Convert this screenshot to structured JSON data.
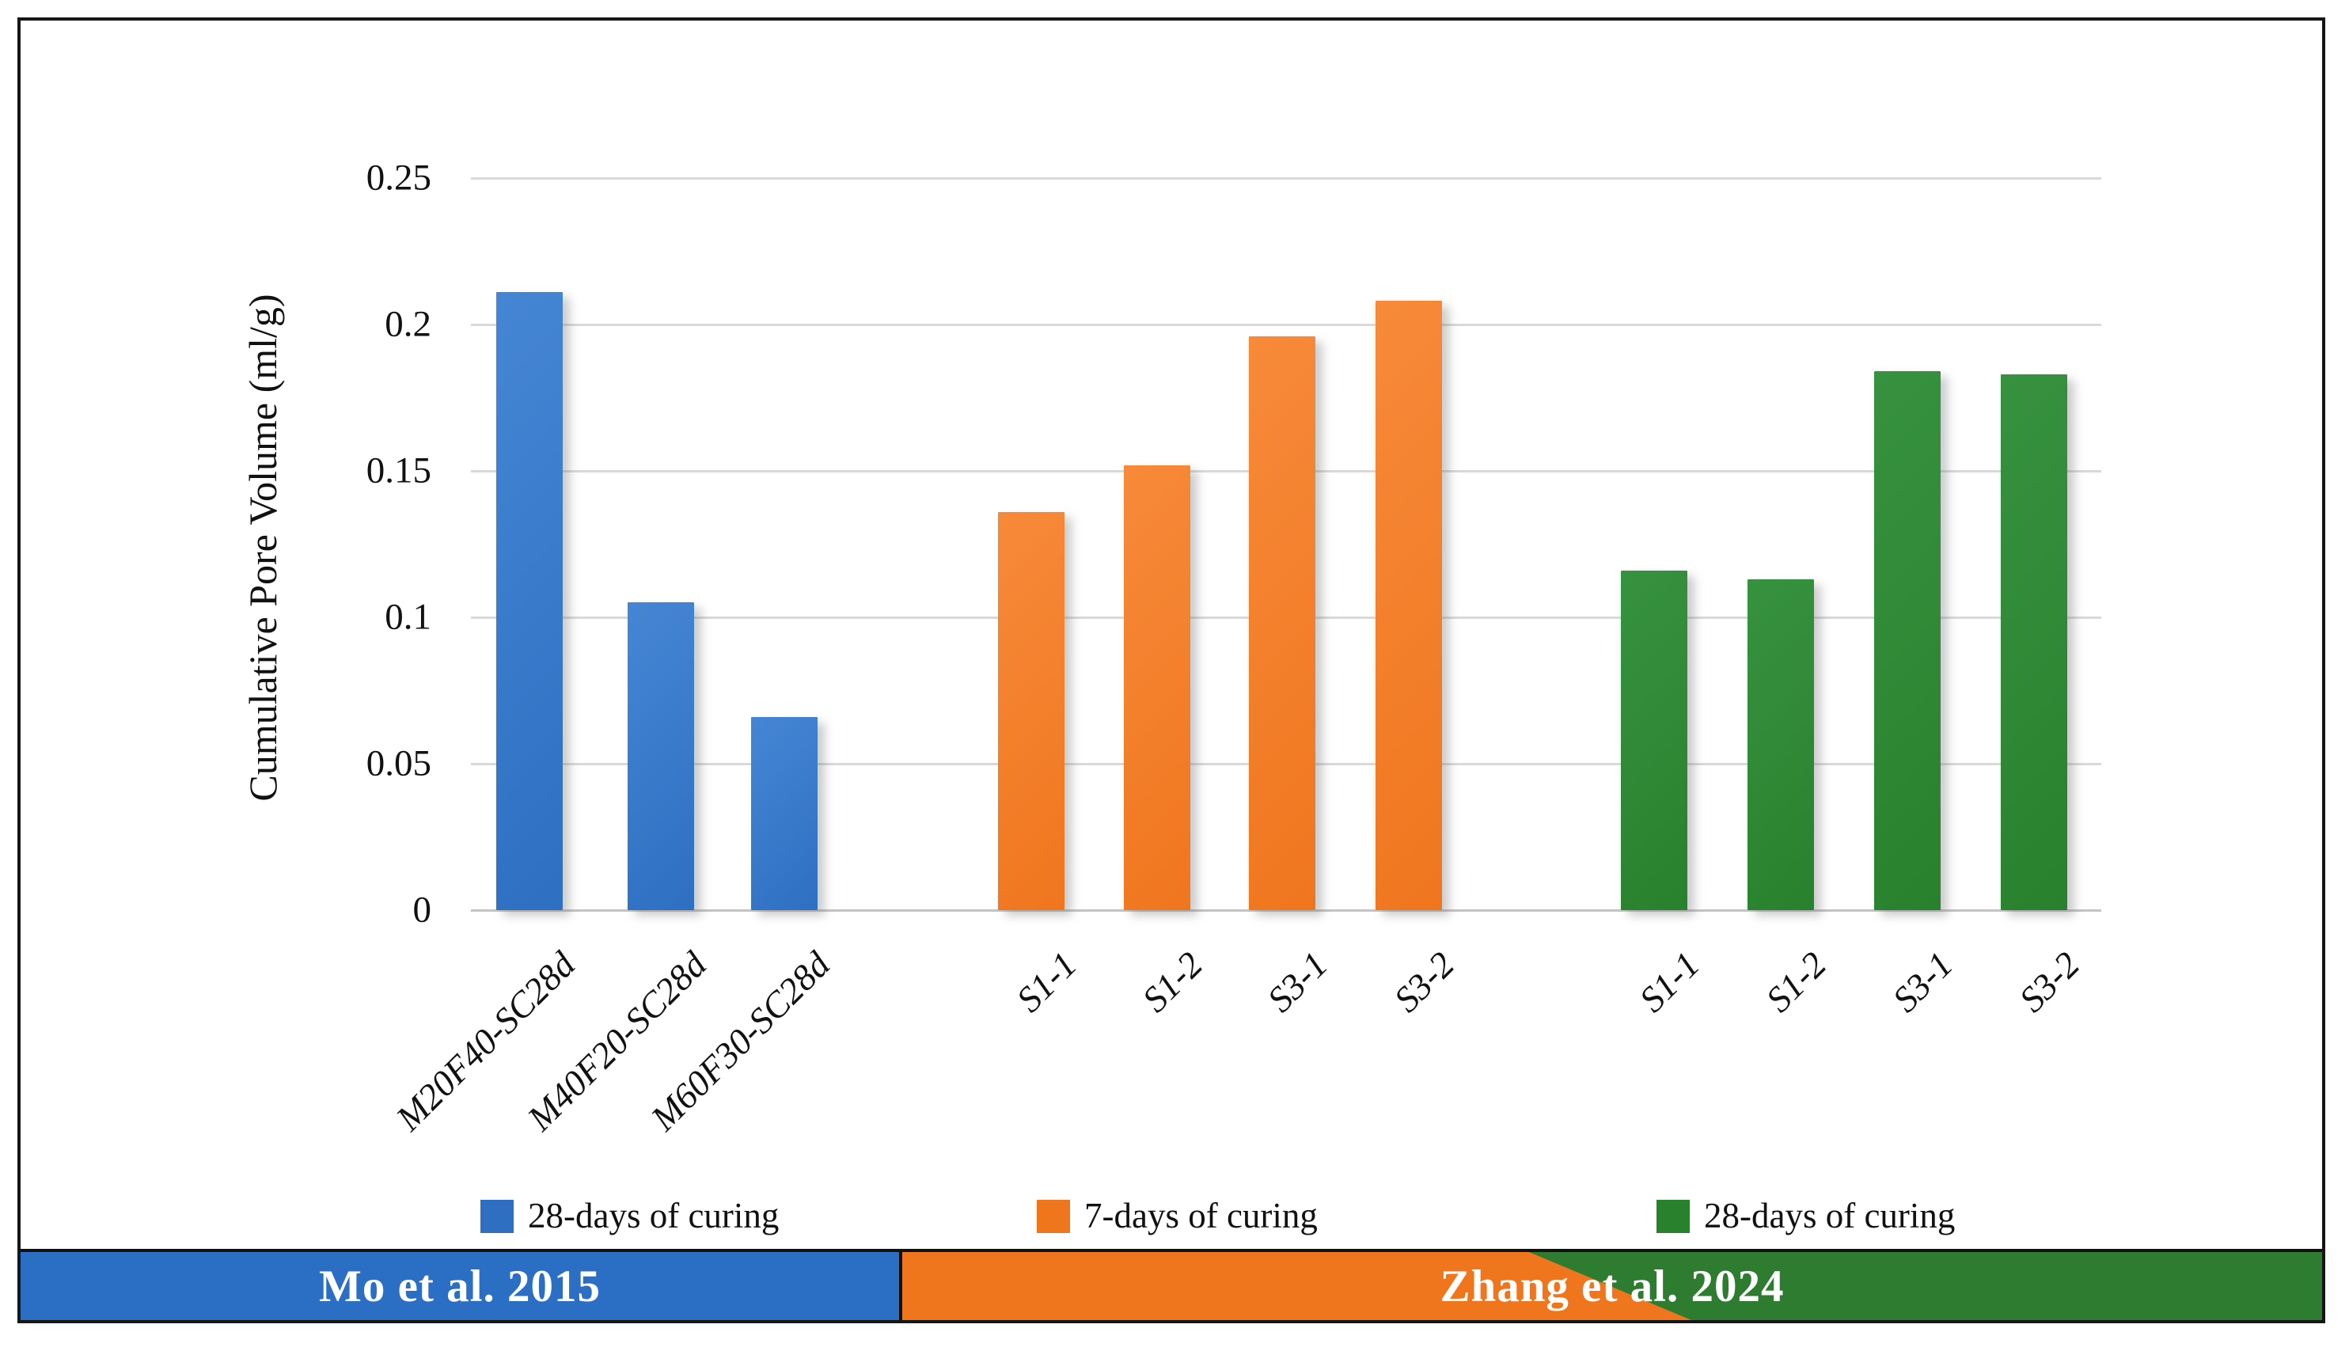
{
  "figure": {
    "background": "#ffffff",
    "frame_color": "#161616"
  },
  "chart_data": {
    "type": "bar",
    "title": "",
    "xlabel": "",
    "ylabel": "Cumulative Pore Volume (ml/g)",
    "ylim": [
      0,
      0.25
    ],
    "yticks": [
      0,
      0.05,
      0.1,
      0.15,
      0.2,
      0.25
    ],
    "ytick_labels": [
      "0",
      "0.05",
      "0.1",
      "0.15",
      "0.2",
      "0.25"
    ],
    "grid": true,
    "legend_position": "bottom",
    "groups": [
      {
        "legend": "28-days of curing",
        "color": "#2e6fc2",
        "categories": [
          "M20F40-SC28d",
          "M40F20-SC28d",
          "M60F30-SC28d"
        ],
        "values": [
          0.211,
          0.105,
          0.066
        ]
      },
      {
        "legend": "7-days of curing",
        "color": "#f0761e",
        "categories": [
          "S1-1",
          "S1-2",
          "S3-1",
          "S3-2"
        ],
        "values": [
          0.136,
          0.152,
          0.196,
          0.208
        ]
      },
      {
        "legend": "28-days of curing",
        "color": "#28812c",
        "categories": [
          "S1-1",
          "S1-2",
          "S3-1",
          "S3-2"
        ],
        "values": [
          0.116,
          0.113,
          0.184,
          0.183
        ]
      }
    ]
  },
  "banner": {
    "left": {
      "label": "Mo et al. 2015",
      "color": "#2b6fc4"
    },
    "right": {
      "label": "Zhang et al. 2024",
      "color_start": "#f0761e",
      "color_end": "#2e7c30"
    },
    "text_color": "#ffffff"
  }
}
